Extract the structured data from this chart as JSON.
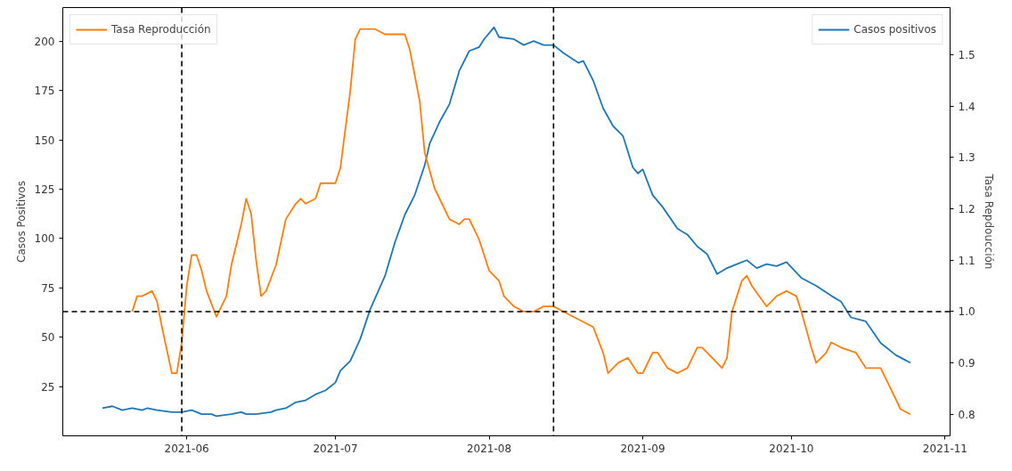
{
  "chart_data": {
    "type": "line",
    "ylabel": "Casos Positivos",
    "y2label": "Tasa Repdoucción",
    "xlim": [
      "2021-05-07",
      "2021-11-02"
    ],
    "xticks": [
      "2021-06",
      "2021-07",
      "2021-08",
      "2021-09",
      "2021-10",
      "2021-11"
    ],
    "ylim": [
      0,
      217
    ],
    "yticks": [
      25,
      50,
      75,
      100,
      125,
      150,
      175,
      200
    ],
    "y2lim": [
      0.758,
      1.592
    ],
    "y2ticks": [
      0.8,
      0.9,
      {
        "value": 1.0,
        "label": "1.0"
      },
      1.1,
      1.2,
      1.3,
      1.4,
      1.5
    ],
    "legend": "top",
    "grid": false,
    "marker": "none",
    "line_style": "solid",
    "series": [
      {
        "name": "Casos positivos",
        "color": "#1f77b4",
        "axis": "y",
        "x": [
          "2021-05-15",
          "2021-05-17",
          "2021-05-19",
          "2021-05-21",
          "2021-05-23",
          "2021-05-24",
          "2021-05-26",
          "2021-05-29",
          "2021-05-31",
          "2021-06-02",
          "2021-06-04",
          "2021-06-06",
          "2021-06-07",
          "2021-06-10",
          "2021-06-12",
          "2021-06-13",
          "2021-06-15",
          "2021-06-18",
          "2021-06-19",
          "2021-06-21",
          "2021-06-23",
          "2021-06-25",
          "2021-06-27",
          "2021-06-29",
          "2021-07-01",
          "2021-07-02",
          "2021-07-04",
          "2021-07-06",
          "2021-07-08",
          "2021-07-11",
          "2021-07-13",
          "2021-07-15",
          "2021-07-17",
          "2021-07-19",
          "2021-07-20",
          "2021-07-22",
          "2021-07-24",
          "2021-07-26",
          "2021-07-28",
          "2021-07-30",
          "2021-07-31",
          "2021-08-02",
          "2021-08-03",
          "2021-08-06",
          "2021-08-08",
          "2021-08-10",
          "2021-08-12",
          "2021-08-14",
          "2021-08-16",
          "2021-08-19",
          "2021-08-20",
          "2021-08-22",
          "2021-08-24",
          "2021-08-26",
          "2021-08-28",
          "2021-08-30",
          "2021-08-31",
          "2021-09-01",
          "2021-09-03",
          "2021-09-05",
          "2021-09-08",
          "2021-09-10",
          "2021-09-12",
          "2021-09-14",
          "2021-09-16",
          "2021-09-18",
          "2021-09-20",
          "2021-09-22",
          "2021-09-24",
          "2021-09-26",
          "2021-09-28",
          "2021-09-30",
          "2021-10-03",
          "2021-10-06",
          "2021-10-09",
          "2021-10-11",
          "2021-10-13",
          "2021-10-16",
          "2021-10-19",
          "2021-10-22",
          "2021-10-25"
        ],
        "values": [
          14,
          15,
          13,
          14,
          13,
          14,
          13,
          12,
          12,
          13,
          11,
          11,
          10,
          11,
          12,
          11,
          11,
          12,
          13,
          14,
          17,
          18,
          21,
          23,
          27,
          33,
          38,
          49,
          64,
          81,
          98,
          112,
          122,
          137,
          148,
          159,
          168,
          185,
          195,
          197,
          201,
          207,
          202,
          201,
          198,
          200,
          198,
          198,
          194,
          189,
          190,
          180,
          166,
          157,
          152,
          136,
          133,
          135,
          122,
          116,
          105,
          102,
          96,
          92,
          82,
          85,
          87,
          89,
          85,
          87,
          86,
          88,
          80,
          76,
          71,
          68,
          60,
          58,
          47,
          41,
          37
        ]
      },
      {
        "name": "Tasa Reproducción",
        "color": "#ff7f0e",
        "axis": "y2",
        "x": [
          "2021-05-21",
          "2021-05-22",
          "2021-05-23",
          "2021-05-25",
          "2021-05-26",
          "2021-05-27",
          "2021-05-29",
          "2021-05-30",
          "2021-05-31",
          "2021-06-01",
          "2021-06-02",
          "2021-06-03",
          "2021-06-04",
          "2021-06-05",
          "2021-06-07",
          "2021-06-09",
          "2021-06-10",
          "2021-06-12",
          "2021-06-13",
          "2021-06-14",
          "2021-06-15",
          "2021-06-16",
          "2021-06-17",
          "2021-06-19",
          "2021-06-21",
          "2021-06-23",
          "2021-06-24",
          "2021-06-25",
          "2021-06-27",
          "2021-06-28",
          "2021-06-30",
          "2021-07-01",
          "2021-07-02",
          "2021-07-04",
          "2021-07-05",
          "2021-07-06",
          "2021-07-08",
          "2021-07-09",
          "2021-07-11",
          "2021-07-12",
          "2021-07-13",
          "2021-07-15",
          "2021-07-16",
          "2021-07-18",
          "2021-07-19",
          "2021-07-21",
          "2021-07-24",
          "2021-07-26",
          "2021-07-27",
          "2021-07-28",
          "2021-07-30",
          "2021-08-01",
          "2021-08-03",
          "2021-08-04",
          "2021-08-06",
          "2021-08-08",
          "2021-08-10",
          "2021-08-12",
          "2021-08-14",
          "2021-08-16",
          "2021-08-18",
          "2021-08-20",
          "2021-08-22",
          "2021-08-24",
          "2021-08-25",
          "2021-08-27",
          "2021-08-29",
          "2021-08-31",
          "2021-09-01",
          "2021-09-03",
          "2021-09-04",
          "2021-09-06",
          "2021-09-08",
          "2021-09-10",
          "2021-09-12",
          "2021-09-13",
          "2021-09-15",
          "2021-09-17",
          "2021-09-18",
          "2021-09-19",
          "2021-09-21",
          "2021-09-22",
          "2021-09-23",
          "2021-09-26",
          "2021-09-28",
          "2021-09-30",
          "2021-10-02",
          "2021-10-03",
          "2021-10-05",
          "2021-10-06",
          "2021-10-08",
          "2021-10-09",
          "2021-10-11",
          "2021-10-14",
          "2021-10-16",
          "2021-10-18",
          "2021-10-19",
          "2021-10-21",
          "2021-10-23",
          "2021-10-25"
        ],
        "values": [
          1.0,
          1.03,
          1.03,
          1.04,
          1.02,
          0.97,
          0.88,
          0.88,
          0.94,
          1.05,
          1.11,
          1.11,
          1.08,
          1.04,
          0.99,
          1.03,
          1.09,
          1.17,
          1.22,
          1.19,
          1.1,
          1.03,
          1.04,
          1.09,
          1.18,
          1.21,
          1.22,
          1.21,
          1.22,
          1.25,
          1.25,
          1.25,
          1.28,
          1.43,
          1.53,
          1.55,
          1.55,
          1.55,
          1.54,
          1.54,
          1.54,
          1.54,
          1.51,
          1.41,
          1.31,
          1.24,
          1.18,
          1.17,
          1.18,
          1.18,
          1.14,
          1.08,
          1.06,
          1.03,
          1.01,
          1.0,
          1.0,
          1.01,
          1.01,
          1.0,
          0.99,
          0.98,
          0.97,
          0.92,
          0.88,
          0.9,
          0.91,
          0.88,
          0.88,
          0.92,
          0.92,
          0.89,
          0.88,
          0.89,
          0.93,
          0.93,
          0.91,
          0.89,
          0.91,
          1.0,
          1.06,
          1.07,
          1.05,
          1.01,
          1.03,
          1.04,
          1.03,
          1.0,
          0.93,
          0.9,
          0.92,
          0.94,
          0.93,
          0.92,
          0.89,
          0.89,
          0.89,
          0.85,
          0.81,
          0.8
        ]
      }
    ],
    "ref_lines": [
      {
        "axis": "x",
        "value": "2021-05-31",
        "color": "#000000",
        "line_style": "dashed"
      },
      {
        "axis": "x",
        "value": "2021-08-14",
        "color": "#000000",
        "line_style": "dashed"
      },
      {
        "axis": "y2",
        "value": 1.0,
        "color": "#000000",
        "line_style": "dashed"
      }
    ]
  }
}
